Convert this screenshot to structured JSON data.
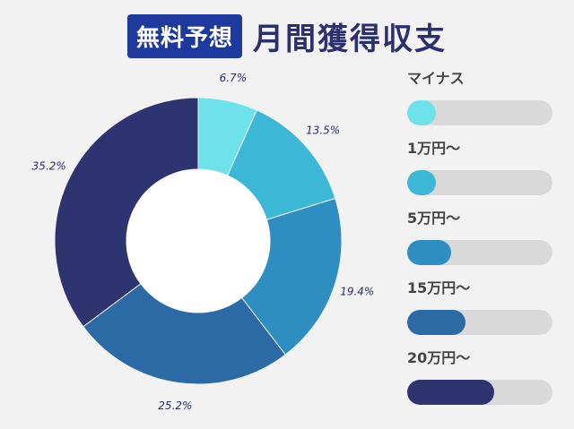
{
  "header": {
    "badge": "無料予想",
    "title": "月間獲得収支"
  },
  "chart_data": {
    "type": "pie",
    "donut": true,
    "categories": [
      "マイナス",
      "1万円〜",
      "5万円〜",
      "15万円〜",
      "20万円〜"
    ],
    "values": [
      6.7,
      13.5,
      19.4,
      25.2,
      35.2
    ],
    "value_labels": [
      "6.7%",
      "13.5%",
      "19.4%",
      "25.2%",
      "35.2%"
    ],
    "unit": "%",
    "colors": [
      "#6ee2ea",
      "#3db7d6",
      "#2e8ec2",
      "#2c6aa6",
      "#2e3470"
    ],
    "legend_placement": "right",
    "start_angle_deg": 0,
    "direction": "clockwise"
  },
  "legend": {
    "items": [
      {
        "label": "マイナス",
        "color": "#6ee2ea",
        "fill_fraction": 0.2
      },
      {
        "label": "1万円〜",
        "color": "#3db7d6",
        "fill_fraction": 0.2
      },
      {
        "label": "5万円〜",
        "color": "#2e8ec2",
        "fill_fraction": 0.3
      },
      {
        "label": "15万円〜",
        "color": "#2c6aa6",
        "fill_fraction": 0.4
      },
      {
        "label": "20万円〜",
        "color": "#2e3470",
        "fill_fraction": 0.6
      }
    ]
  }
}
